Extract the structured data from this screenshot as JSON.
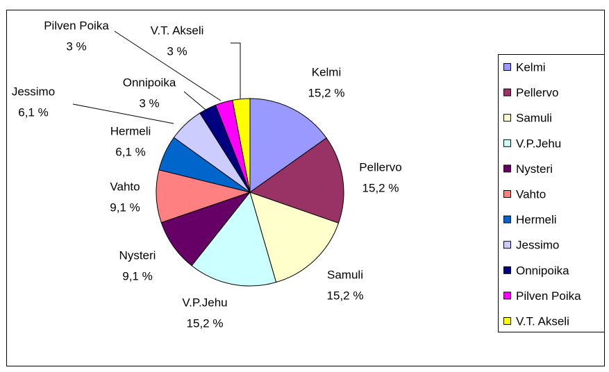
{
  "chart_data": {
    "type": "pie",
    "categories": [
      "Kelmi",
      "Pellervo",
      "Samuli",
      "V.P.Jehu",
      "Nysteri",
      "Vahto",
      "Hermeli",
      "Jessimo",
      "Onnipoika",
      "Pilven Poika",
      "V.T. Akseli"
    ],
    "values": [
      15.2,
      15.2,
      15.2,
      15.2,
      9.1,
      9.1,
      6.1,
      6.1,
      3,
      3,
      3
    ],
    "value_labels": [
      "15,2 %",
      "15,2 %",
      "15,2 %",
      "15,2 %",
      "9,1 %",
      "9,1 %",
      "6,1 %",
      "6,1 %",
      "3 %",
      "3 %",
      "3 %"
    ],
    "colors": [
      "#9999ff",
      "#993366",
      "#ffffcc",
      "#ccffff",
      "#660066",
      "#ff8080",
      "#0066cc",
      "#ccccff",
      "#000080",
      "#ff00ff",
      "#ffff00"
    ],
    "legend": "right"
  }
}
